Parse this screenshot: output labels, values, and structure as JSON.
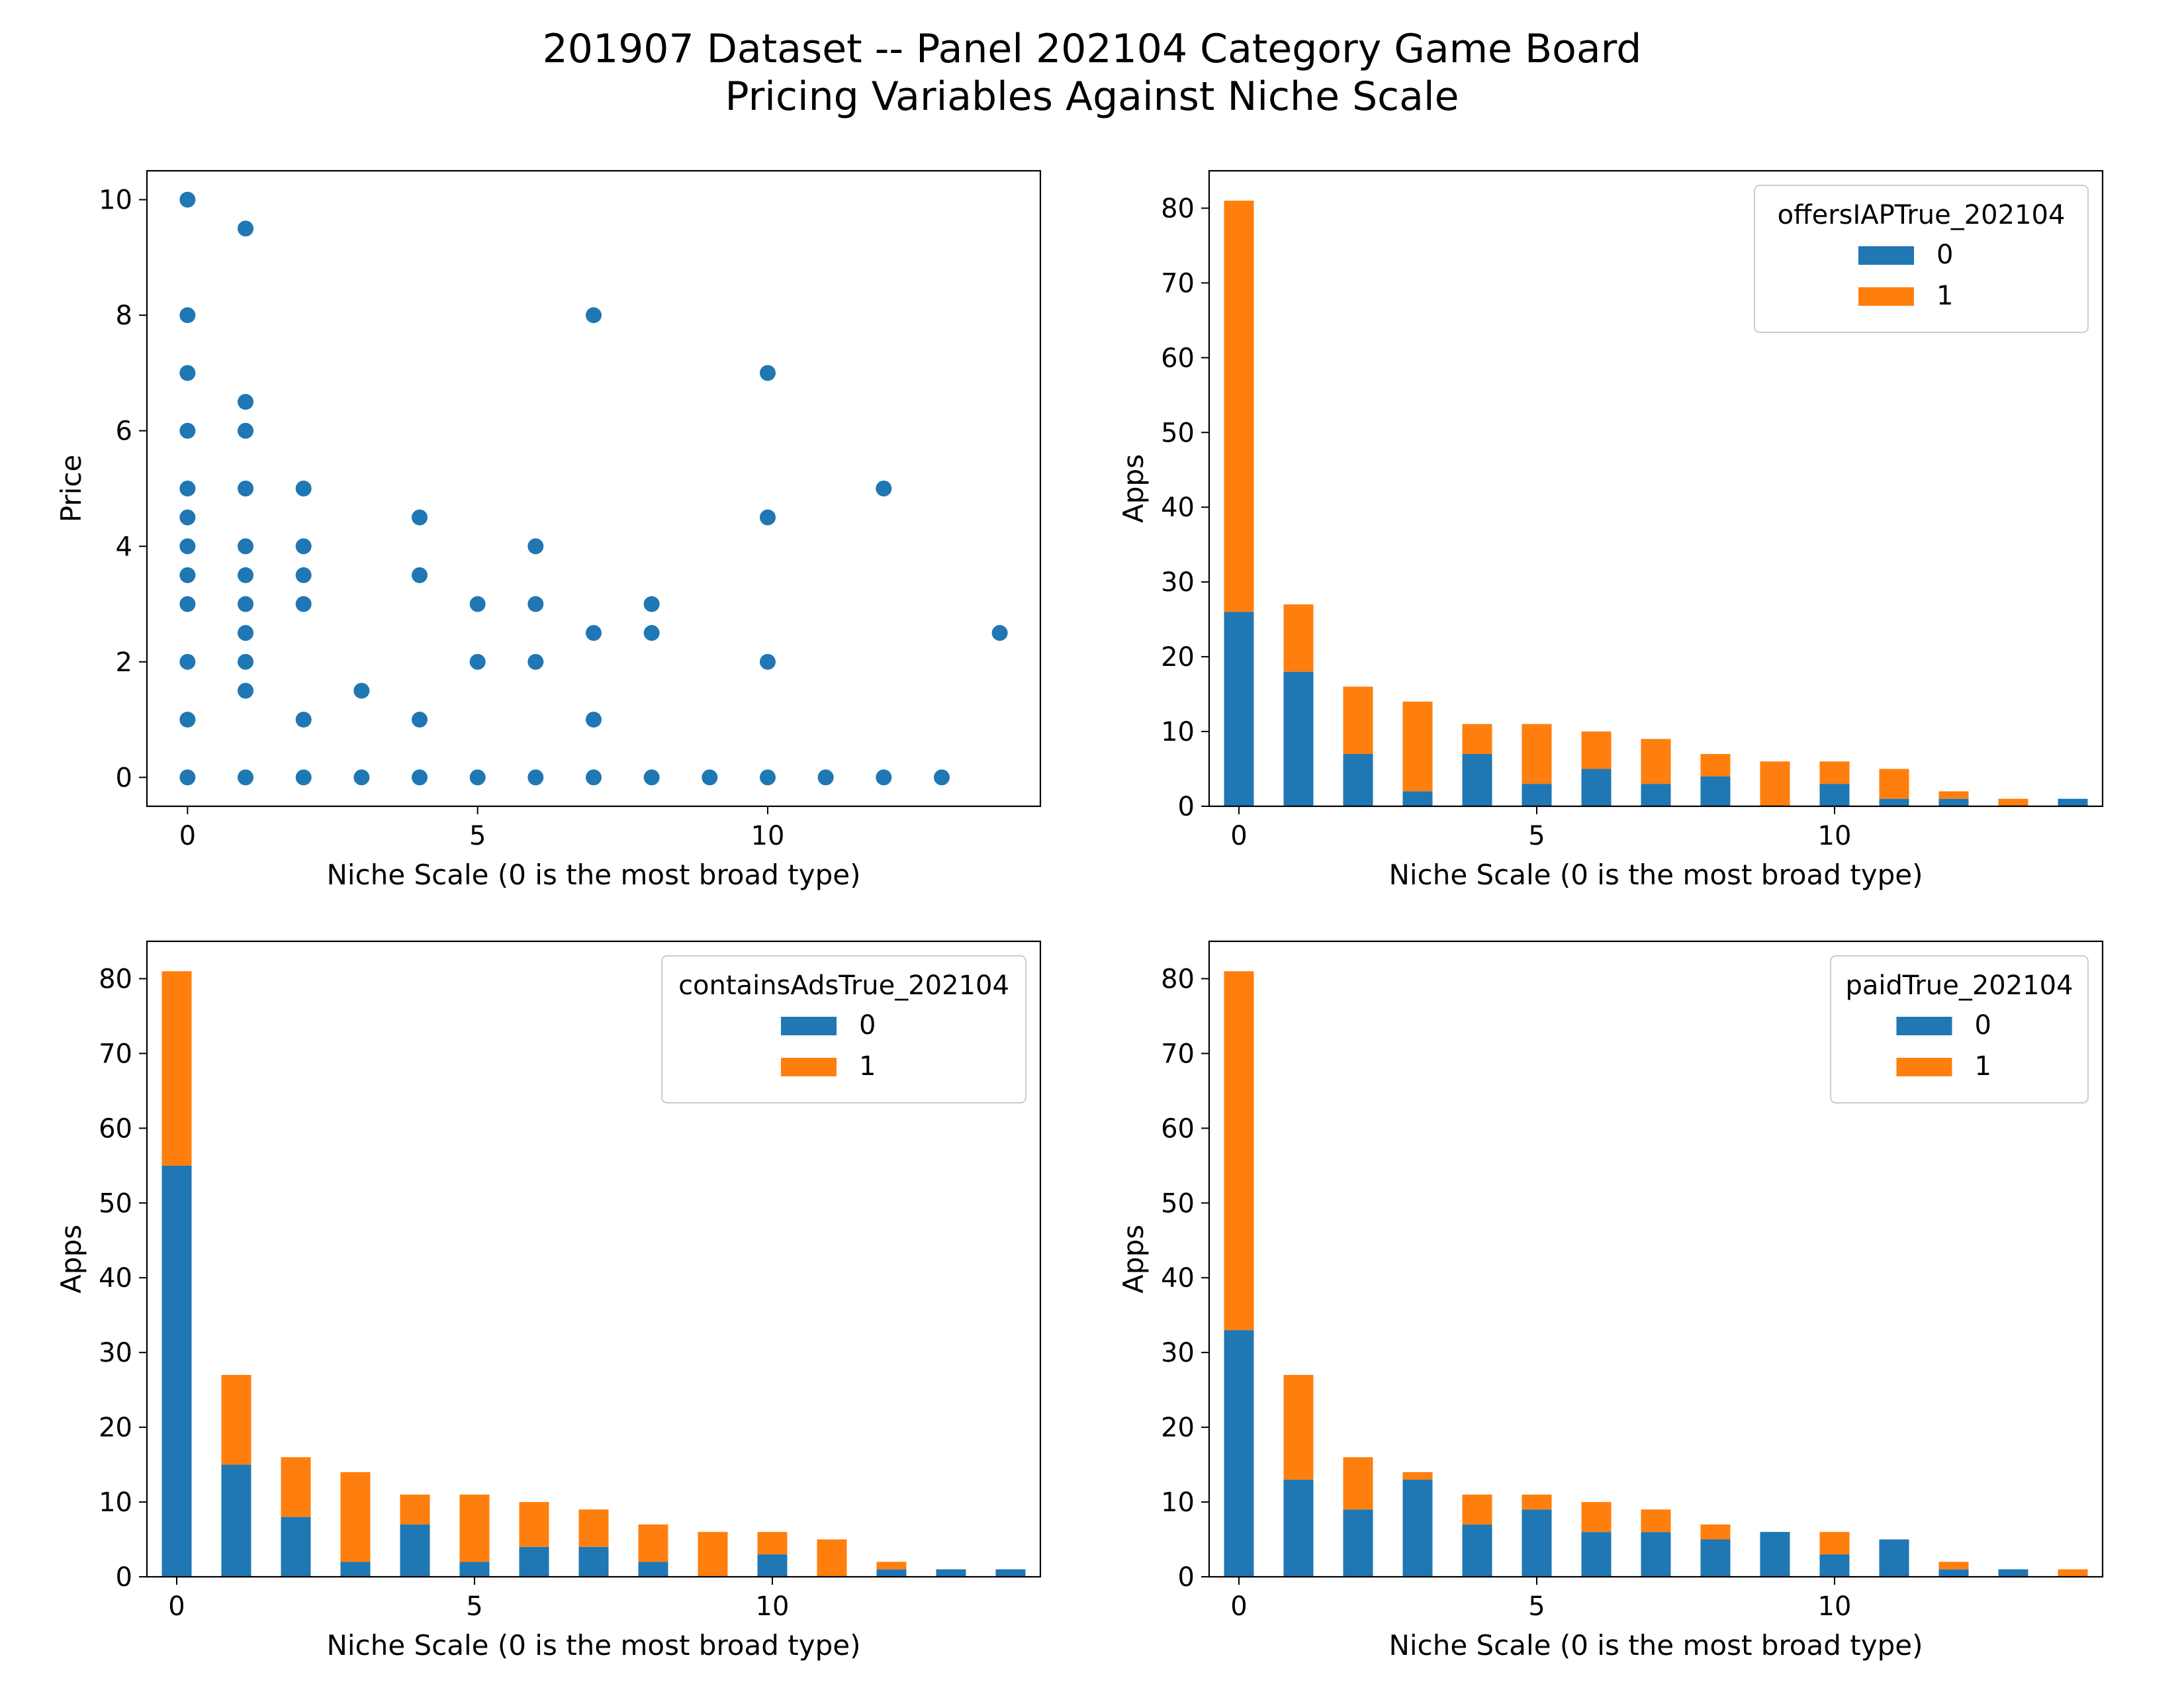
{
  "figure": {
    "title_line1": "201907 Dataset -- Panel 202104 Category Game Board",
    "title_line2": "Pricing Variables Against Niche Scale"
  },
  "colors": {
    "series0": "#1f77b4",
    "series1": "#ff7f0e"
  },
  "chart_data": [
    {
      "type": "scatter",
      "xlabel": "Niche Scale (0 is the most broad type)",
      "ylabel": "Price",
      "xlim": [
        -0.7,
        14.7
      ],
      "ylim": [
        -0.5,
        10.5
      ],
      "xticks": [
        0,
        5,
        10
      ],
      "yticks": [
        0,
        2,
        4,
        6,
        8,
        10
      ],
      "points": [
        [
          0,
          10
        ],
        [
          0,
          8
        ],
        [
          0,
          7
        ],
        [
          0,
          6
        ],
        [
          0,
          5
        ],
        [
          0,
          4.5
        ],
        [
          0,
          4
        ],
        [
          0,
          3.5
        ],
        [
          0,
          3
        ],
        [
          0,
          2
        ],
        [
          0,
          1
        ],
        [
          0,
          0
        ],
        [
          1,
          9.5
        ],
        [
          1,
          6.5
        ],
        [
          1,
          6
        ],
        [
          1,
          5
        ],
        [
          1,
          4
        ],
        [
          1,
          3.5
        ],
        [
          1,
          3
        ],
        [
          1,
          2.5
        ],
        [
          1,
          2
        ],
        [
          1,
          1.5
        ],
        [
          1,
          0
        ],
        [
          2,
          5
        ],
        [
          2,
          4
        ],
        [
          2,
          3.5
        ],
        [
          2,
          3
        ],
        [
          2,
          1
        ],
        [
          2,
          0
        ],
        [
          3,
          1.5
        ],
        [
          3,
          0
        ],
        [
          4,
          4.5
        ],
        [
          4,
          3.5
        ],
        [
          4,
          1
        ],
        [
          4,
          0
        ],
        [
          5,
          3
        ],
        [
          5,
          2
        ],
        [
          5,
          0
        ],
        [
          6,
          4
        ],
        [
          6,
          3
        ],
        [
          6,
          2
        ],
        [
          6,
          0
        ],
        [
          7,
          8
        ],
        [
          7,
          2.5
        ],
        [
          7,
          1
        ],
        [
          7,
          0
        ],
        [
          8,
          3
        ],
        [
          8,
          2.5
        ],
        [
          8,
          0
        ],
        [
          9,
          0
        ],
        [
          10,
          7
        ],
        [
          10,
          4.5
        ],
        [
          10,
          2
        ],
        [
          10,
          0
        ],
        [
          11,
          0
        ],
        [
          12,
          5
        ],
        [
          12,
          0
        ],
        [
          13,
          0
        ],
        [
          14,
          2.5
        ]
      ]
    },
    {
      "type": "bar",
      "stacked": true,
      "xlabel": "Niche Scale (0 is the most broad type)",
      "ylabel": "Apps",
      "categories": [
        0,
        1,
        2,
        3,
        4,
        5,
        6,
        7,
        8,
        9,
        10,
        11,
        12,
        13,
        14
      ],
      "xticks": [
        0,
        5,
        10
      ],
      "yticks": [
        0,
        10,
        20,
        30,
        40,
        50,
        60,
        70,
        80
      ],
      "ylim": [
        0,
        85
      ],
      "legend_title": "offersIAPTrue_202104",
      "legend_position": "top-right",
      "series": [
        {
          "name": "0",
          "values": [
            26,
            18,
            7,
            2,
            7,
            3,
            5,
            3,
            4,
            0,
            3,
            1,
            1,
            0,
            1
          ]
        },
        {
          "name": "1",
          "values": [
            55,
            9,
            9,
            12,
            4,
            8,
            5,
            6,
            3,
            6,
            3,
            4,
            1,
            1,
            0
          ]
        }
      ]
    },
    {
      "type": "bar",
      "stacked": true,
      "xlabel": "Niche Scale (0 is the most broad type)",
      "ylabel": "Apps",
      "categories": [
        0,
        1,
        2,
        3,
        4,
        5,
        6,
        7,
        8,
        9,
        10,
        11,
        12,
        13,
        14
      ],
      "xticks": [
        0,
        5,
        10
      ],
      "yticks": [
        0,
        10,
        20,
        30,
        40,
        50,
        60,
        70,
        80
      ],
      "ylim": [
        0,
        85
      ],
      "legend_title": "containsAdsTrue_202104",
      "legend_position": "top-right",
      "series": [
        {
          "name": "0",
          "values": [
            55,
            15,
            8,
            2,
            7,
            2,
            4,
            4,
            2,
            0,
            3,
            0,
            1,
            1,
            1
          ]
        },
        {
          "name": "1",
          "values": [
            26,
            12,
            8,
            12,
            4,
            9,
            6,
            5,
            5,
            6,
            3,
            5,
            1,
            0,
            0
          ]
        }
      ]
    },
    {
      "type": "bar",
      "stacked": true,
      "xlabel": "Niche Scale (0 is the most broad type)",
      "ylabel": "Apps",
      "categories": [
        0,
        1,
        2,
        3,
        4,
        5,
        6,
        7,
        8,
        9,
        10,
        11,
        12,
        13,
        14
      ],
      "xticks": [
        0,
        5,
        10
      ],
      "yticks": [
        0,
        10,
        20,
        30,
        40,
        50,
        60,
        70,
        80
      ],
      "ylim": [
        0,
        85
      ],
      "legend_title": "paidTrue_202104",
      "legend_position": "top-right",
      "series": [
        {
          "name": "0",
          "values": [
            33,
            13,
            9,
            13,
            7,
            9,
            6,
            6,
            5,
            6,
            3,
            5,
            1,
            1,
            0
          ]
        },
        {
          "name": "1",
          "values": [
            48,
            14,
            7,
            1,
            4,
            2,
            4,
            3,
            2,
            0,
            3,
            0,
            1,
            0,
            1
          ]
        }
      ]
    }
  ]
}
